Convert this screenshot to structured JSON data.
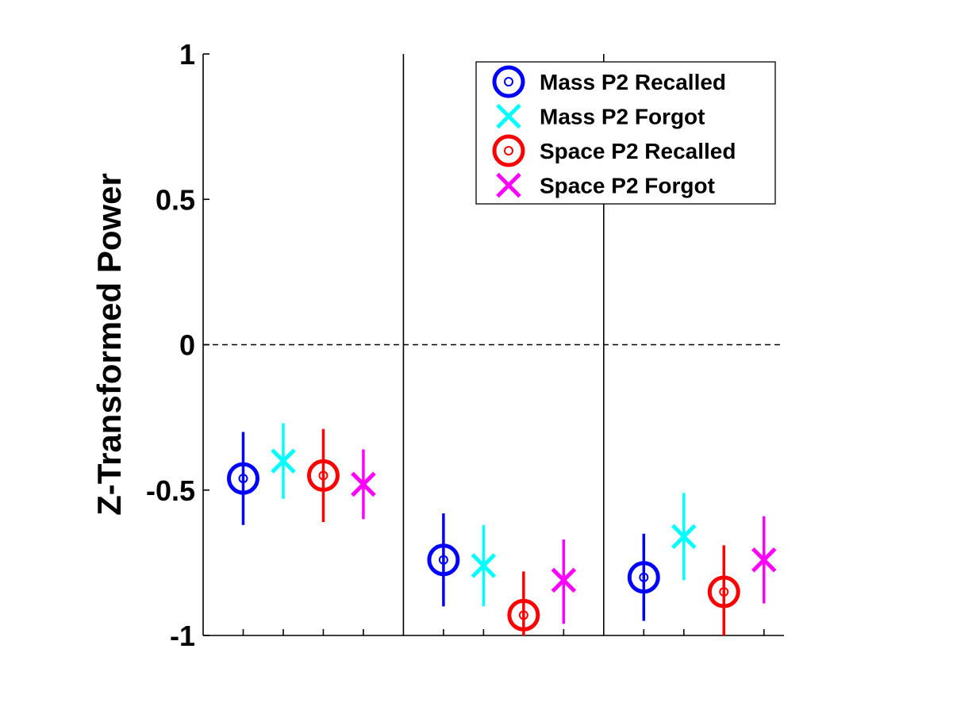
{
  "chart_data": {
    "type": "scatter",
    "title": "",
    "xlabel": "",
    "ylabel": "Z-Transformed Power",
    "ylim": [
      -1,
      1
    ],
    "yticks": [
      {
        "value": 1,
        "label": "1"
      },
      {
        "value": 0.5,
        "label": "0.5"
      },
      {
        "value": 0,
        "label": "0"
      },
      {
        "value": -0.5,
        "label": "-0.5"
      },
      {
        "value": -1,
        "label": "-1"
      }
    ],
    "x_tick_positions": [
      1,
      2,
      3,
      4,
      6,
      7,
      8,
      9,
      11,
      12,
      13,
      14
    ],
    "xlim": [
      0.0,
      14.5
    ],
    "group_dividers_x": [
      5.0,
      10.0
    ],
    "reference_line_y": 0,
    "grid": false,
    "legend_position": "top-right",
    "series": [
      {
        "name": "Mass P2 Recalled",
        "marker": "circle",
        "color": "#0000ff",
        "x": [
          1,
          6,
          11
        ],
        "y": [
          -0.46,
          -0.74,
          -0.8
        ],
        "err_low": [
          -0.62,
          -0.9,
          -0.95
        ],
        "err_high": [
          -0.3,
          -0.58,
          -0.65
        ]
      },
      {
        "name": "Mass P2 Forgot",
        "marker": "x",
        "color": "#00ffff",
        "x": [
          2,
          7,
          12
        ],
        "y": [
          -0.4,
          -0.76,
          -0.66
        ],
        "err_low": [
          -0.53,
          -0.9,
          -0.81
        ],
        "err_high": [
          -0.27,
          -0.62,
          -0.51
        ]
      },
      {
        "name": "Space P2 Recalled",
        "marker": "circle",
        "color": "#ff0000",
        "x": [
          3,
          8,
          13
        ],
        "y": [
          -0.45,
          -0.93,
          -0.85
        ],
        "err_low": [
          -0.61,
          -1.0,
          -1.0
        ],
        "err_high": [
          -0.29,
          -0.78,
          -0.69
        ]
      },
      {
        "name": "Space P2 Forgot",
        "marker": "x",
        "color": "#ff00ff",
        "x": [
          4,
          9,
          14
        ],
        "y": [
          -0.48,
          -0.81,
          -0.74
        ],
        "err_low": [
          -0.6,
          -0.96,
          -0.89
        ],
        "err_high": [
          -0.36,
          -0.67,
          -0.59
        ]
      }
    ]
  }
}
